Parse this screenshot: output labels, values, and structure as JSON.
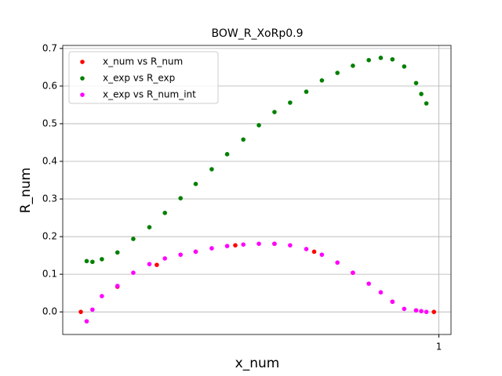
{
  "chart_data": {
    "type": "scatter",
    "title": "BOW_R_XoRp0.9",
    "xlabel": "x_num",
    "ylabel": "R_num",
    "ylabel_color": "#ff0000",
    "xscale": "log",
    "xlim": [
      0.4,
      1.03
    ],
    "xticks": [
      1
    ],
    "ylim": [
      -0.06,
      0.708
    ],
    "yticks": [
      {
        "value": 0,
        "label": "0.0"
      },
      0.1,
      0.2,
      0.3,
      0.4,
      0.5,
      0.6,
      0.7
    ],
    "grid": true,
    "legend": "upper left",
    "series": [
      {
        "name": "x_num vs R_num",
        "color": "#ff0000",
        "x": [
          0.418,
          0.457,
          0.503,
          0.553,
          0.609,
          0.67,
          0.738,
          0.811,
          0.893,
          0.946,
          0.988
        ],
        "values": [
          0,
          0.067,
          0.125,
          0.16,
          0.177,
          0.181,
          0.16,
          0.104,
          0.027,
          0.004,
          0
        ]
      },
      {
        "name": "x_exp vs R_exp",
        "color": "#008000",
        "x": [
          0.424,
          0.43,
          0.44,
          0.457,
          0.475,
          0.494,
          0.513,
          0.533,
          0.553,
          0.575,
          0.597,
          0.621,
          0.645,
          0.67,
          0.696,
          0.724,
          0.752,
          0.781,
          0.811,
          0.843,
          0.868,
          0.893,
          0.919,
          0.946,
          0.958,
          0.97
        ],
        "values": [
          0.135,
          0.133,
          0.14,
          0.158,
          0.194,
          0.225,
          0.263,
          0.302,
          0.34,
          0.379,
          0.419,
          0.458,
          0.496,
          0.531,
          0.556,
          0.585,
          0.615,
          0.635,
          0.654,
          0.669,
          0.675,
          0.671,
          0.652,
          0.608,
          0.579,
          0.554
        ]
      },
      {
        "name": "x_exp vs R_num_int",
        "color": "#ff00ff",
        "x": [
          0.424,
          0.43,
          0.44,
          0.457,
          0.475,
          0.494,
          0.513,
          0.533,
          0.553,
          0.575,
          0.597,
          0.621,
          0.645,
          0.67,
          0.696,
          0.724,
          0.752,
          0.781,
          0.811,
          0.843,
          0.868,
          0.893,
          0.919,
          0.946,
          0.958,
          0.97
        ],
        "values": [
          -0.025,
          0.006,
          0.042,
          0.069,
          0.104,
          0.127,
          0.142,
          0.152,
          0.16,
          0.169,
          0.175,
          0.179,
          0.181,
          0.181,
          0.177,
          0.167,
          0.152,
          0.131,
          0.104,
          0.075,
          0.052,
          0.027,
          0.008,
          0.004,
          0.002,
          0
        ]
      }
    ]
  }
}
